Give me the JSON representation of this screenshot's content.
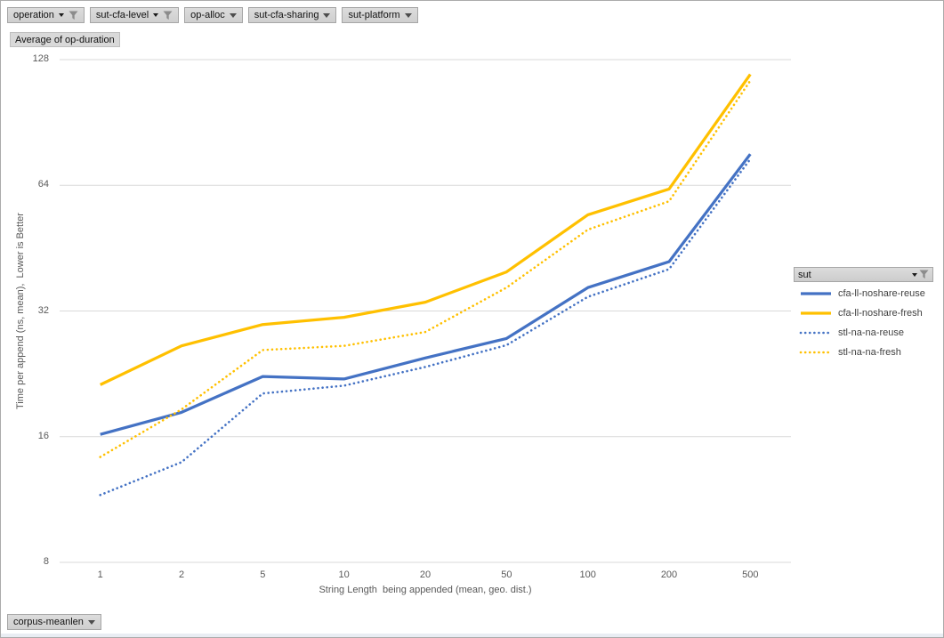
{
  "filter_buttons": {
    "top": [
      {
        "label": "operation",
        "filtered": true
      },
      {
        "label": "sut-cfa-level",
        "filtered": true
      },
      {
        "label": "op-alloc",
        "filtered": false
      },
      {
        "label": "sut-cfa-sharing",
        "filtered": false
      },
      {
        "label": "sut-platform",
        "filtered": false
      }
    ],
    "value_field": "Average of op-duration",
    "legend_field": {
      "label": "sut",
      "filtered": true
    },
    "bottom": [
      {
        "label": "corpus-meanlen",
        "filtered": false
      }
    ]
  },
  "chart_data": {
    "type": "line",
    "title": "Average of op-duration",
    "x": [
      1,
      2,
      5,
      10,
      20,
      50,
      100,
      200,
      500
    ],
    "x_type": "category",
    "series": [
      {
        "name": "cfa-ll-noshare-reuse",
        "color": "#4472C4",
        "style": "solid",
        "values": [
          16.2,
          18.3,
          22.3,
          22.0,
          24.7,
          27.5,
          36.4,
          42.0,
          76
        ]
      },
      {
        "name": "cfa-ll-noshare-fresh",
        "color": "#FFC000",
        "style": "solid",
        "values": [
          21.3,
          26.4,
          29.7,
          30.9,
          33.6,
          39.7,
          54.4,
          62.7,
          118
        ]
      },
      {
        "name": "stl-na-na-reuse",
        "color": "#4472C4",
        "style": "dotted",
        "values": [
          11.6,
          13.9,
          20.3,
          21.2,
          23.5,
          26.5,
          34.6,
          40.3,
          74
        ]
      },
      {
        "name": "stl-na-na-fresh",
        "color": "#FFC000",
        "style": "dotted",
        "values": [
          14.3,
          18.6,
          25.8,
          26.4,
          28.5,
          36.4,
          50.1,
          58.6,
          114
        ]
      }
    ],
    "xlabel": "String Length  being appended (mean, geo. dist.)",
    "ylabel": "Time per append (ns, mean),  Lower is Better",
    "y_scale": "log2",
    "y_ticks": [
      8,
      16,
      32,
      64,
      128
    ],
    "ylim": [
      8,
      128
    ],
    "grid": "horizontal",
    "legend_position": "right",
    "gridline_color": "#D9D9D9",
    "axis_text_color": "#595959"
  }
}
